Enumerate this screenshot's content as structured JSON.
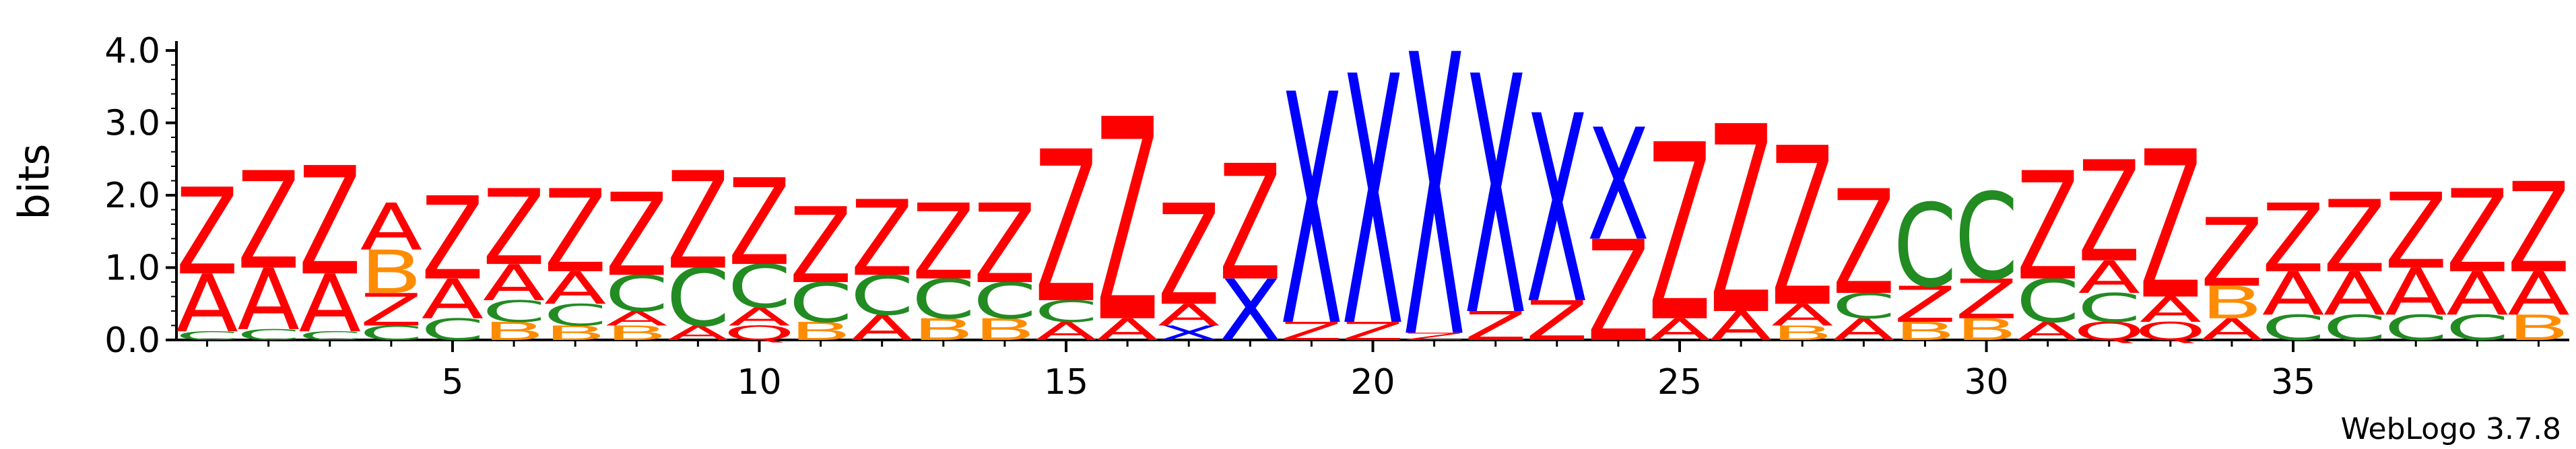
{
  "chart_data": {
    "type": "sequence-logo",
    "ylabel": "bits",
    "ylim": [
      0,
      4
    ],
    "yticks": [
      "0.0",
      "1.0",
      "2.0",
      "3.0",
      "4.0"
    ],
    "xticks": [
      5,
      10,
      15,
      20,
      25,
      30,
      35
    ],
    "colors": {
      "Z": "#ff0000",
      "A": "#ff0000",
      "X": "#0000ff",
      "C": "#228b22",
      "B": "#ff8c00",
      "Q": "#ff0000"
    },
    "positions": [
      {
        "pos": 1,
        "stack": [
          [
            "C",
            0.12
          ],
          [
            "A",
            0.8
          ],
          [
            "Z",
            1.2
          ]
        ]
      },
      {
        "pos": 2,
        "stack": [
          [
            "C",
            0.15
          ],
          [
            "A",
            0.85
          ],
          [
            "Z",
            1.35
          ]
        ]
      },
      {
        "pos": 3,
        "stack": [
          [
            "C",
            0.12
          ],
          [
            "A",
            0.8
          ],
          [
            "Z",
            1.5
          ]
        ]
      },
      {
        "pos": 4,
        "stack": [
          [
            "C",
            0.2
          ],
          [
            "Z",
            0.45
          ],
          [
            "B",
            0.6
          ],
          [
            "A",
            0.65
          ]
        ]
      },
      {
        "pos": 5,
        "stack": [
          [
            "C",
            0.3
          ],
          [
            "A",
            0.55
          ],
          [
            "Z",
            1.15
          ]
        ]
      },
      {
        "pos": 6,
        "stack": [
          [
            "B",
            0.25
          ],
          [
            "C",
            0.3
          ],
          [
            "A",
            0.5
          ],
          [
            "Z",
            1.05
          ]
        ]
      },
      {
        "pos": 7,
        "stack": [
          [
            "B",
            0.2
          ],
          [
            "C",
            0.3
          ],
          [
            "A",
            0.45
          ],
          [
            "Z",
            1.15
          ]
        ]
      },
      {
        "pos": 8,
        "stack": [
          [
            "B",
            0.2
          ],
          [
            "A",
            0.2
          ],
          [
            "C",
            0.5
          ],
          [
            "Z",
            1.15
          ]
        ]
      },
      {
        "pos": 9,
        "stack": [
          [
            "A",
            0.2
          ],
          [
            "C",
            0.8
          ],
          [
            "Z",
            1.35
          ]
        ]
      },
      {
        "pos": 10,
        "stack": [
          [
            "Q",
            0.2
          ],
          [
            "A",
            0.25
          ],
          [
            "C",
            0.6
          ],
          [
            "Z",
            1.2
          ]
        ]
      },
      {
        "pos": 11,
        "stack": [
          [
            "B",
            0.25
          ],
          [
            "C",
            0.55
          ],
          [
            "Z",
            1.05
          ]
        ]
      },
      {
        "pos": 12,
        "stack": [
          [
            "A",
            0.35
          ],
          [
            "C",
            0.55
          ],
          [
            "Z",
            1.05
          ]
        ]
      },
      {
        "pos": 13,
        "stack": [
          [
            "B",
            0.3
          ],
          [
            "C",
            0.55
          ],
          [
            "Z",
            1.05
          ]
        ]
      },
      {
        "pos": 14,
        "stack": [
          [
            "B",
            0.3
          ],
          [
            "C",
            0.5
          ],
          [
            "Z",
            1.1
          ]
        ]
      },
      {
        "pos": 15,
        "stack": [
          [
            "A",
            0.25
          ],
          [
            "C",
            0.3
          ],
          [
            "Z",
            2.1
          ]
        ]
      },
      {
        "pos": 16,
        "stack": [
          [
            "A",
            0.3
          ],
          [
            "Z",
            2.8
          ]
        ]
      },
      {
        "pos": 17,
        "stack": [
          [
            "X",
            0.2
          ],
          [
            "A",
            0.3
          ],
          [
            "Z",
            1.4
          ]
        ]
      },
      {
        "pos": 18,
        "stack": [
          [
            "X",
            0.85
          ],
          [
            "Z",
            1.6
          ]
        ]
      },
      {
        "pos": 19,
        "stack": [
          [
            "Z",
            0.25
          ],
          [
            "X",
            3.2
          ]
        ]
      },
      {
        "pos": 20,
        "stack": [
          [
            "Z",
            0.25
          ],
          [
            "X",
            3.45
          ]
        ]
      },
      {
        "pos": 21,
        "stack": [
          [
            "Z",
            0.1
          ],
          [
            "X",
            3.9
          ]
        ]
      },
      {
        "pos": 22,
        "stack": [
          [
            "Z",
            0.4
          ],
          [
            "X",
            3.3
          ]
        ]
      },
      {
        "pos": 23,
        "stack": [
          [
            "Z",
            0.55
          ],
          [
            "X",
            2.6
          ]
        ]
      },
      {
        "pos": 24,
        "stack": [
          [
            "Z",
            1.4
          ],
          [
            "X",
            1.55
          ]
        ]
      },
      {
        "pos": 25,
        "stack": [
          [
            "A",
            0.3
          ],
          [
            "Z",
            2.45
          ]
        ]
      },
      {
        "pos": 26,
        "stack": [
          [
            "A",
            0.4
          ],
          [
            "Z",
            2.6
          ]
        ]
      },
      {
        "pos": 27,
        "stack": [
          [
            "B",
            0.2
          ],
          [
            "A",
            0.3
          ],
          [
            "Z",
            2.2
          ]
        ]
      },
      {
        "pos": 28,
        "stack": [
          [
            "A",
            0.3
          ],
          [
            "C",
            0.35
          ],
          [
            "Z",
            1.45
          ]
        ]
      },
      {
        "pos": 29,
        "stack": [
          [
            "B",
            0.25
          ],
          [
            "Z",
            0.5
          ],
          [
            "C",
            1.15
          ]
        ]
      },
      {
        "pos": 30,
        "stack": [
          [
            "B",
            0.3
          ],
          [
            "Z",
            0.55
          ],
          [
            "C",
            1.2
          ]
        ]
      },
      {
        "pos": 31,
        "stack": [
          [
            "A",
            0.25
          ],
          [
            "C",
            0.6
          ],
          [
            "Z",
            1.5
          ]
        ]
      },
      {
        "pos": 32,
        "stack": [
          [
            "Q",
            0.25
          ],
          [
            "C",
            0.4
          ],
          [
            "A",
            0.45
          ],
          [
            "Z",
            1.4
          ]
        ]
      },
      {
        "pos": 33,
        "stack": [
          [
            "Q",
            0.25
          ],
          [
            "A",
            0.35
          ],
          [
            "Z",
            2.05
          ]
        ]
      },
      {
        "pos": 34,
        "stack": [
          [
            "A",
            0.3
          ],
          [
            "B",
            0.45
          ],
          [
            "Z",
            0.95
          ]
        ]
      },
      {
        "pos": 35,
        "stack": [
          [
            "C",
            0.35
          ],
          [
            "A",
            0.6
          ],
          [
            "Z",
            0.95
          ]
        ]
      },
      {
        "pos": 36,
        "stack": [
          [
            "C",
            0.35
          ],
          [
            "A",
            0.6
          ],
          [
            "Z",
            1.0
          ]
        ]
      },
      {
        "pos": 37,
        "stack": [
          [
            "C",
            0.35
          ],
          [
            "A",
            0.65
          ],
          [
            "Z",
            1.05
          ]
        ]
      },
      {
        "pos": 38,
        "stack": [
          [
            "C",
            0.35
          ],
          [
            "A",
            0.6
          ],
          [
            "Z",
            1.15
          ]
        ]
      },
      {
        "pos": 39,
        "stack": [
          [
            "B",
            0.35
          ],
          [
            "A",
            0.6
          ],
          [
            "Z",
            1.25
          ]
        ]
      }
    ]
  },
  "footer": {
    "brand": "WebLogo 3.7.8"
  }
}
